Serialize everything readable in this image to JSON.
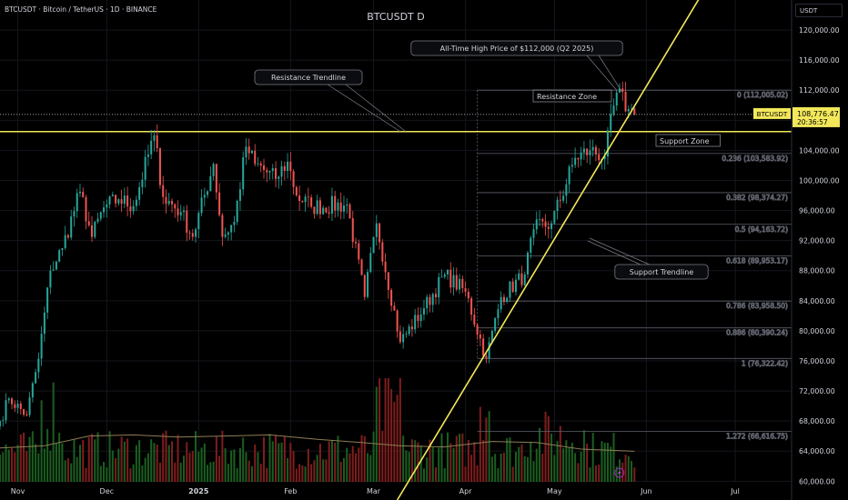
{
  "header": {
    "symbol_line": "BTCUSDT · Bitcoin / TetherUS · 1D · BINANCE",
    "chart_title": "BTCUSDT D",
    "currency": "USDT"
  },
  "price_tag": {
    "label": "BTCUSDT",
    "price": "108,776.47",
    "countdown": "20:36:57"
  },
  "colors": {
    "background": "#000000",
    "up": "#26a69a",
    "down": "#ef5350",
    "volume_up": "#1b5e20",
    "volume_down": "#7f1d1d",
    "trendline": "#f2e85a",
    "fib": "#5d606b",
    "ma": "#8d7d54",
    "text": "#d1d4dc"
  },
  "annotations": {
    "ath": "All-Time High Price of $112,000  (Q2 2025)",
    "resistance_trendline": "Resistance Trendline",
    "support_trendline": "Support Trendline",
    "resistance_zone": "Resistance Zone",
    "support_zone": "Support Zone"
  },
  "chart_data": {
    "type": "candlestick",
    "title": "BTCUSDT D",
    "y_scale": "linear",
    "ylim": [
      57500,
      124000
    ],
    "x_range": [
      "2024-10-26",
      "2025-07-20"
    ],
    "y_ticks": [
      "120,000.00",
      "116,000.00",
      "112,000.00",
      "108,000.00",
      "104,000.00",
      "100,000.00",
      "96,000.00",
      "92,000.00",
      "88,000.00",
      "84,000.00",
      "80,000.00",
      "76,000.00",
      "72,000.00",
      "68,000.00",
      "64,000.00",
      "60,000.00"
    ],
    "x_ticks": [
      {
        "label": "Nov",
        "date": "2024-11-01"
      },
      {
        "label": "Dec",
        "date": "2024-12-01"
      },
      {
        "label": "2025",
        "date": "2025-01-01"
      },
      {
        "label": "Feb",
        "date": "2025-02-01"
      },
      {
        "label": "Mar",
        "date": "2025-03-01"
      },
      {
        "label": "Apr",
        "date": "2025-04-01"
      },
      {
        "label": "May",
        "date": "2025-05-01"
      },
      {
        "label": "Jun",
        "date": "2025-06-01"
      },
      {
        "label": "Jul",
        "date": "2025-07-01"
      }
    ],
    "close_anchors": [
      [
        "2024-10-26",
        68000
      ],
      [
        "2024-10-29",
        71000
      ],
      [
        "2024-11-04",
        68800
      ],
      [
        "2024-11-08",
        76300
      ],
      [
        "2024-11-12",
        88000
      ],
      [
        "2024-11-16",
        91000
      ],
      [
        "2024-11-22",
        98500
      ],
      [
        "2024-11-26",
        92500
      ],
      [
        "2024-11-30",
        96400
      ],
      [
        "2024-12-05",
        97500
      ],
      [
        "2024-12-10",
        96600
      ],
      [
        "2024-12-17",
        106000
      ],
      [
        "2024-12-20",
        97800
      ],
      [
        "2024-12-26",
        95800
      ],
      [
        "2024-12-30",
        92500
      ],
      [
        "2025-01-06",
        102200
      ],
      [
        "2025-01-09",
        92500
      ],
      [
        "2025-01-13",
        94500
      ],
      [
        "2025-01-17",
        104500
      ],
      [
        "2025-01-20",
        102200
      ],
      [
        "2025-01-27",
        100200
      ],
      [
        "2025-01-31",
        102500
      ],
      [
        "2025-02-03",
        98000
      ],
      [
        "2025-02-08",
        96500
      ],
      [
        "2025-02-20",
        96800
      ],
      [
        "2025-02-26",
        84500
      ],
      [
        "2025-03-02",
        94300
      ],
      [
        "2025-03-10",
        78500
      ],
      [
        "2025-03-18",
        83000
      ],
      [
        "2025-03-25",
        87500
      ],
      [
        "2025-04-01",
        85200
      ],
      [
        "2025-04-08",
        76300
      ],
      [
        "2025-04-13",
        84500
      ],
      [
        "2025-04-21",
        87500
      ],
      [
        "2025-04-24",
        93500
      ],
      [
        "2025-04-30",
        94300
      ],
      [
        "2025-05-08",
        103000
      ],
      [
        "2025-05-13",
        104000
      ],
      [
        "2025-05-18",
        103200
      ],
      [
        "2025-05-22",
        111700
      ],
      [
        "2025-05-26",
        109500
      ],
      [
        "2025-05-28",
        108776
      ]
    ],
    "fib_levels": [
      {
        "label": "0 (112,005.02)",
        "value": 112005.02
      },
      {
        "label": "0.236 (103,583.92)",
        "value": 103583.92
      },
      {
        "label": "0.382 (98,374.27)",
        "value": 98374.27
      },
      {
        "label": "0.5 (94,163.72)",
        "value": 94163.72
      },
      {
        "label": "0.618 (89,953.17)",
        "value": 89953.17
      },
      {
        "label": "0.786 (83,958.50)",
        "value": 83958.5
      },
      {
        "label": "0.886 (80,390.24)",
        "value": 80390.24
      },
      {
        "label": "1 (76,322.42)",
        "value": 76322.42
      },
      {
        "label": "1.272 (66,616.75)",
        "value": 66616.75
      }
    ],
    "resistance_line": {
      "value": 106500,
      "from": "2024-10-26",
      "to": "2025-07-20"
    },
    "support_trendline": {
      "points": [
        [
          "2025-03-09",
          57500
        ],
        [
          "2025-05-19",
          104000
        ]
      ]
    },
    "volume_ma": [
      [
        "2024-10-26",
        0.31
      ],
      [
        "2024-11-10",
        0.33
      ],
      [
        "2024-11-25",
        0.42
      ],
      [
        "2024-12-10",
        0.43
      ],
      [
        "2024-12-25",
        0.41
      ],
      [
        "2025-01-10",
        0.42
      ],
      [
        "2025-01-25",
        0.43
      ],
      [
        "2025-02-10",
        0.39
      ],
      [
        "2025-02-25",
        0.36
      ],
      [
        "2025-03-10",
        0.33
      ],
      [
        "2025-03-25",
        0.32
      ],
      [
        "2025-04-10",
        0.37
      ],
      [
        "2025-04-25",
        0.36
      ],
      [
        "2025-05-10",
        0.3
      ],
      [
        "2025-05-28",
        0.28
      ]
    ]
  }
}
